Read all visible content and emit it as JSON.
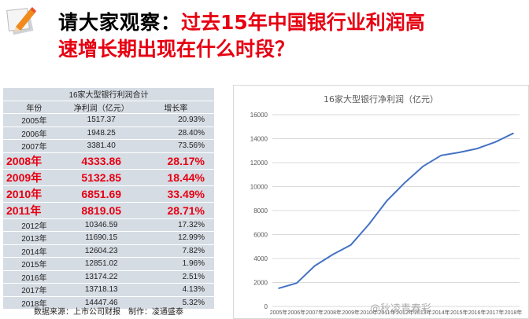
{
  "heading": {
    "lead": "请大家观察：",
    "line1_red": "过去15年中国银行业利润高",
    "line2": "速增长期出现在什么时段？"
  },
  "table": {
    "title": "16家大型银行利润合计",
    "headers": [
      "年份",
      "净利润（亿元）",
      "增长率"
    ],
    "rows": [
      {
        "year": "2005年",
        "profit": "1517.37",
        "growth": "20.93%",
        "highlight": false
      },
      {
        "year": "2006年",
        "profit": "1948.25",
        "growth": "28.40%",
        "highlight": false
      },
      {
        "year": "2007年",
        "profit": "3381.40",
        "growth": "73.56%",
        "highlight": false
      },
      {
        "year": "2008年",
        "profit": "4333.86",
        "growth": "28.17%",
        "highlight": true
      },
      {
        "year": "2009年",
        "profit": "5132.85",
        "growth": "18.44%",
        "highlight": true
      },
      {
        "year": "2010年",
        "profit": "6851.69",
        "growth": "33.49%",
        "highlight": true
      },
      {
        "year": "2011年",
        "profit": "8819.05",
        "growth": "28.71%",
        "highlight": true
      },
      {
        "year": "2012年",
        "profit": "10346.59",
        "growth": "17.32%",
        "highlight": false
      },
      {
        "year": "2013年",
        "profit": "11690.15",
        "growth": "12.99%",
        "highlight": false
      },
      {
        "year": "2014年",
        "profit": "12604.23",
        "growth": "7.82%",
        "highlight": false
      },
      {
        "year": "2015年",
        "profit": "12851.02",
        "growth": "1.96%",
        "highlight": false
      },
      {
        "year": "2016年",
        "profit": "13174.22",
        "growth": "2.51%",
        "highlight": false
      },
      {
        "year": "2017年",
        "profit": "13718.13",
        "growth": "4.13%",
        "highlight": false
      },
      {
        "year": "2018年",
        "profit": "14447.46",
        "growth": "5.32%",
        "highlight": false
      }
    ],
    "source": "数据来源：上市公司财报　制作：凌通盛泰"
  },
  "watermark": "@秋凌青春彩",
  "colors": {
    "accent_red": "#e60012",
    "table_bg": "#d6dce4",
    "line": "#4472c4"
  },
  "chart_data": {
    "type": "line",
    "title": "16家大型银行净利润（亿元）",
    "x": [
      "2005年",
      "2006年",
      "2007年",
      "2008年",
      "2009年",
      "2010年",
      "2011年",
      "2012年",
      "2013年",
      "2014年",
      "2015年",
      "2016年",
      "2017年",
      "2018年"
    ],
    "series": [
      {
        "values": [
          1517.37,
          1948.25,
          3381.4,
          4333.86,
          5132.85,
          6851.69,
          8819.05,
          10346.59,
          11690.15,
          12604.23,
          12851.02,
          13174.22,
          13718.13,
          14447.46
        ]
      }
    ],
    "ylim": [
      0,
      16000
    ],
    "yticks": [
      0,
      2000,
      4000,
      6000,
      8000,
      10000,
      12000,
      14000,
      16000
    ],
    "grid": true,
    "xlabel": "",
    "ylabel": ""
  }
}
